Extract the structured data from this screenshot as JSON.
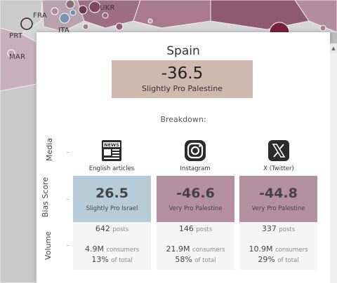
{
  "map": {
    "labels": {
      "fra": "FRA",
      "ukr": "UKR",
      "prt": "PRT",
      "mar": "MAR",
      "ita": "ITA"
    }
  },
  "tooltip": {
    "country": "Spain",
    "score": "-36.5",
    "score_label": "Slightly Pro Palestine",
    "score_color": "#cfb8ad",
    "breakdown_label": "Breakdown:",
    "row_labels": {
      "media": "Media",
      "bias": "Bias Score",
      "volume": "Volume"
    },
    "columns": [
      {
        "media": "English articles",
        "icon": "news-icon",
        "bias": "26.5",
        "bias_label": "Slightly Pro Israel",
        "bias_color": "#b7ccd9",
        "posts": "642",
        "posts_unit": "posts",
        "consumers": "4.9M",
        "consumers_unit": "consumers",
        "pct": "13%",
        "pct_unit": "of total"
      },
      {
        "media": "Instagram",
        "icon": "instagram-icon",
        "bias": "-46.6",
        "bias_label": "Very Pro Palestine",
        "bias_color": "#b48f9e",
        "posts": "146",
        "posts_unit": "posts",
        "consumers": "21.9M",
        "consumers_unit": "consumers",
        "pct": "58%",
        "pct_unit": "of total"
      },
      {
        "media": "X (Twitter)",
        "icon": "x-twitter-icon",
        "bias": "-44.8",
        "bias_label": "Very Pro Palestine",
        "bias_color": "#b48f9e",
        "posts": "337",
        "posts_unit": "posts",
        "consumers": "10.9M",
        "consumers_unit": "consumers",
        "pct": "29%",
        "pct_unit": "of total"
      }
    ]
  }
}
